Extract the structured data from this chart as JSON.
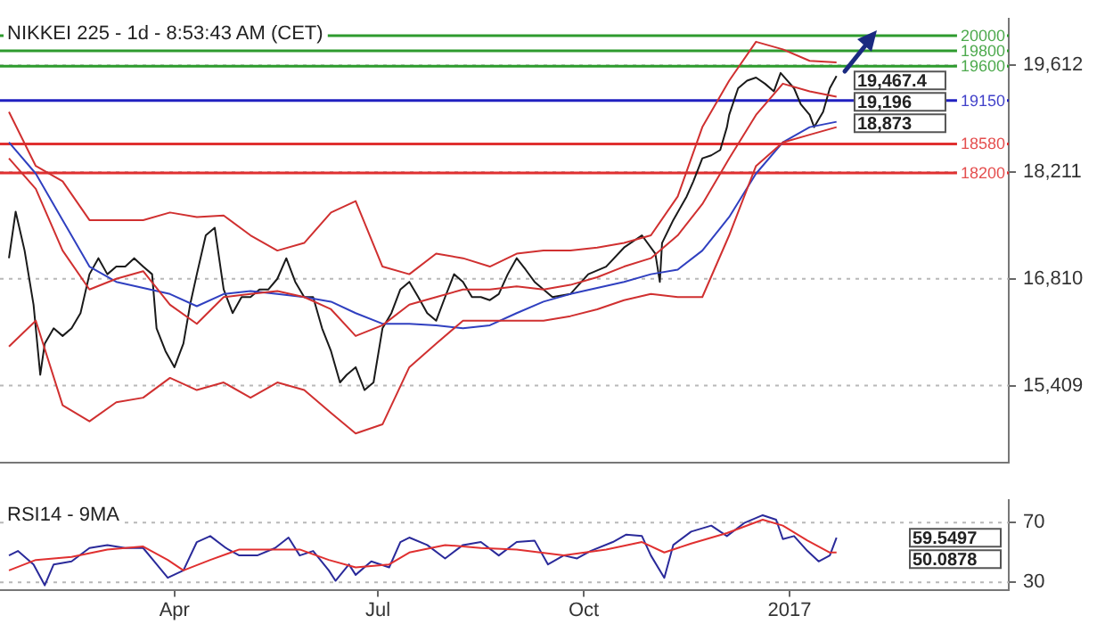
{
  "chart_data": [
    {
      "type": "line",
      "title": "NIKKEI 225 - 1d - 8:53:43 AM (CET)",
      "marker": "none",
      "grid": "y",
      "tick_labels": "y",
      "xlim": [
        "2016-01-14",
        "2017-04-09"
      ],
      "xticks": [
        {
          "value": "2016-04-01",
          "label": null
        },
        {
          "value": "2016-07-01",
          "label": null
        },
        {
          "value": "2016-10-01",
          "label": null
        },
        {
          "value": "2017-01-01",
          "label": null
        }
      ],
      "ylim": [
        14400,
        20220
      ],
      "yticks": [
        {
          "value": 15409,
          "label": "15,409"
        },
        {
          "value": 16810,
          "label": "16,810"
        },
        {
          "value": 18211,
          "label": "18,211"
        },
        {
          "value": 19612,
          "label": "19,612"
        }
      ],
      "ref_lines": [
        {
          "axis": "y",
          "value": 20000,
          "label": "20000",
          "color": "#2e9b2e"
        },
        {
          "axis": "y",
          "value": 19800,
          "label": "19800",
          "color": "#2e9b2e"
        },
        {
          "axis": "y",
          "value": 19600,
          "label": "19600",
          "color": "#2e9b2e"
        },
        {
          "axis": "y",
          "value": 19150,
          "label": "19150",
          "color": "#2020c0"
        },
        {
          "axis": "y",
          "value": 18580,
          "label": "18580",
          "color": "#e03030"
        },
        {
          "axis": "y",
          "value": 18200,
          "label": "18200",
          "color": "#e03030"
        }
      ],
      "series": [
        {
          "color": "#d03030",
          "x": [
            "2016-01-18",
            "2016-01-30",
            "2016-02-11",
            "2016-02-23",
            "2016-03-06",
            "2016-03-18",
            "2016-03-30",
            "2016-04-11",
            "2016-04-23",
            "2016-05-05",
            "2016-05-17",
            "2016-05-29",
            "2016-06-10",
            "2016-06-21",
            "2016-07-03",
            "2016-07-15",
            "2016-07-27",
            "2016-08-08",
            "2016-08-20",
            "2016-09-01",
            "2016-09-13",
            "2016-09-25",
            "2016-10-07",
            "2016-10-19",
            "2016-10-31",
            "2016-11-12",
            "2016-11-23",
            "2016-12-05",
            "2016-12-17",
            "2016-12-29",
            "2017-01-10",
            "2017-01-22"
          ],
          "values": [
            19000,
            18290,
            18090,
            17580,
            17580,
            17580,
            17680,
            17620,
            17640,
            17380,
            17180,
            17280,
            17680,
            17830,
            16970,
            16870,
            17140,
            17080,
            16970,
            17140,
            17180,
            17180,
            17220,
            17280,
            17380,
            17890,
            18800,
            19410,
            19920,
            19820,
            19670,
            19650
          ]
        },
        {
          "color": "#d03030",
          "x": [
            "2016-01-18",
            "2016-01-30",
            "2016-02-11",
            "2016-02-23",
            "2016-03-06",
            "2016-03-18",
            "2016-03-30",
            "2016-04-11",
            "2016-04-23",
            "2016-05-05",
            "2016-05-17",
            "2016-05-29",
            "2016-06-10",
            "2016-06-21",
            "2016-07-03",
            "2016-07-15",
            "2016-07-27",
            "2016-08-08",
            "2016-08-20",
            "2016-09-01",
            "2016-09-13",
            "2016-09-25",
            "2016-10-07",
            "2016-10-19",
            "2016-10-31",
            "2016-11-12",
            "2016-11-23",
            "2016-12-05",
            "2016-12-17",
            "2016-12-29",
            "2017-01-10",
            "2017-01-22"
          ],
          "values": [
            18390,
            17990,
            17180,
            16670,
            16810,
            16910,
            16470,
            16220,
            16570,
            16610,
            16650,
            16570,
            16410,
            16060,
            16200,
            16470,
            16570,
            16670,
            16670,
            16710,
            16670,
            16730,
            16830,
            16970,
            17080,
            17380,
            17790,
            18390,
            18960,
            19370,
            19270,
            19200
          ]
        },
        {
          "color": "#d03030",
          "x": [
            "2016-01-18",
            "2016-01-30",
            "2016-02-11",
            "2016-02-23",
            "2016-03-06",
            "2016-03-18",
            "2016-03-30",
            "2016-04-11",
            "2016-04-23",
            "2016-05-05",
            "2016-05-17",
            "2016-05-29",
            "2016-06-10",
            "2016-06-21",
            "2016-07-03",
            "2016-07-15",
            "2016-07-27",
            "2016-08-08",
            "2016-08-20",
            "2016-09-01",
            "2016-09-13",
            "2016-09-25",
            "2016-10-07",
            "2016-10-19",
            "2016-10-31",
            "2016-11-12",
            "2016-11-23",
            "2016-12-05",
            "2016-12-17",
            "2016-12-29",
            "2017-01-10",
            "2017-01-22"
          ],
          "values": [
            15920,
            16260,
            15150,
            14940,
            15190,
            15250,
            15510,
            15350,
            15450,
            15250,
            15450,
            15350,
            15050,
            14780,
            14900,
            15650,
            15960,
            16260,
            16260,
            16260,
            16260,
            16320,
            16410,
            16530,
            16610,
            16570,
            16570,
            17380,
            18290,
            18600,
            18700,
            18800
          ]
        },
        {
          "color": "#3040c0",
          "x": [
            "2016-01-18",
            "2016-01-30",
            "2016-02-11",
            "2016-02-23",
            "2016-03-06",
            "2016-03-18",
            "2016-03-30",
            "2016-04-11",
            "2016-04-23",
            "2016-05-05",
            "2016-05-17",
            "2016-05-29",
            "2016-06-10",
            "2016-06-21",
            "2016-07-03",
            "2016-07-15",
            "2016-07-27",
            "2016-08-08",
            "2016-08-20",
            "2016-09-01",
            "2016-09-13",
            "2016-09-25",
            "2016-10-07",
            "2016-10-19",
            "2016-10-31",
            "2016-11-12",
            "2016-11-23",
            "2016-12-05",
            "2016-12-17",
            "2016-12-29",
            "2017-01-10",
            "2017-01-22"
          ],
          "values": [
            18600,
            18190,
            17580,
            16970,
            16770,
            16690,
            16610,
            16450,
            16610,
            16650,
            16610,
            16570,
            16510,
            16360,
            16220,
            16220,
            16200,
            16160,
            16200,
            16360,
            16510,
            16610,
            16690,
            16770,
            16870,
            16930,
            17180,
            17620,
            18190,
            18600,
            18800,
            18870
          ]
        },
        {
          "color": "#1a1a1a",
          "x": [
            "2016-01-18",
            "2016-01-21",
            "2016-01-25",
            "2016-01-29",
            "2016-02-01",
            "2016-02-03",
            "2016-02-07",
            "2016-02-11",
            "2016-02-15",
            "2016-02-19",
            "2016-02-23",
            "2016-02-27",
            "2016-03-02",
            "2016-03-06",
            "2016-03-10",
            "2016-03-14",
            "2016-03-18",
            "2016-03-22",
            "2016-03-24",
            "2016-03-28",
            "2016-04-01",
            "2016-04-05",
            "2016-04-08",
            "2016-04-11",
            "2016-04-15",
            "2016-04-19",
            "2016-04-23",
            "2016-04-27",
            "2016-05-01",
            "2016-05-05",
            "2016-05-09",
            "2016-05-13",
            "2016-05-17",
            "2016-05-21",
            "2016-05-25",
            "2016-05-29",
            "2016-06-02",
            "2016-06-06",
            "2016-06-10",
            "2016-06-14",
            "2016-06-17",
            "2016-06-21",
            "2016-06-25",
            "2016-06-29",
            "2016-07-03",
            "2016-07-07",
            "2016-07-11",
            "2016-07-15",
            "2016-07-19",
            "2016-07-23",
            "2016-07-27",
            "2016-07-31",
            "2016-08-04",
            "2016-08-08",
            "2016-08-12",
            "2016-08-16",
            "2016-08-20",
            "2016-08-24",
            "2016-08-28",
            "2016-09-01",
            "2016-09-05",
            "2016-09-09",
            "2016-09-17",
            "2016-09-25",
            "2016-10-03",
            "2016-10-11",
            "2016-10-19",
            "2016-10-27",
            "2016-11-02",
            "2016-11-04",
            "2016-11-05",
            "2016-11-10",
            "2016-11-16",
            "2016-11-19",
            "2016-11-23",
            "2016-11-27",
            "2016-12-01",
            "2016-12-04",
            "2016-12-05",
            "2016-12-09",
            "2016-12-13",
            "2016-12-17",
            "2016-12-21",
            "2016-12-25",
            "2016-12-28",
            "2016-12-31",
            "2017-01-03",
            "2017-01-06",
            "2017-01-10",
            "2017-01-12",
            "2017-01-16",
            "2017-01-19",
            "2017-01-22"
          ],
          "values": [
            17080,
            17690,
            17180,
            16470,
            15550,
            15960,
            16160,
            16060,
            16160,
            16360,
            16870,
            17080,
            16870,
            16970,
            16970,
            17080,
            16970,
            16870,
            16160,
            15860,
            15650,
            15960,
            16470,
            16870,
            17380,
            17480,
            16670,
            16360,
            16570,
            16570,
            16670,
            16670,
            16810,
            17080,
            16770,
            16570,
            16570,
            16160,
            15860,
            15450,
            15550,
            15650,
            15350,
            15450,
            16160,
            16360,
            16670,
            16770,
            16570,
            16360,
            16260,
            16570,
            16870,
            16770,
            16570,
            16570,
            16530,
            16610,
            16870,
            17080,
            16930,
            16770,
            16570,
            16610,
            16870,
            16970,
            17220,
            17380,
            17140,
            16770,
            17280,
            17580,
            17890,
            18090,
            18390,
            18430,
            18500,
            18800,
            18960,
            19310,
            19410,
            19450,
            19370,
            19270,
            19510,
            19410,
            19310,
            19100,
            18960,
            18800,
            19000,
            19310,
            19470
          ]
        }
      ],
      "annotations": [
        "19,467.4",
        "19,196",
        "18,873"
      ]
    },
    {
      "type": "line",
      "title": "RSI14 - 9MA",
      "marker": "none",
      "grid": "y",
      "xlim": [
        "2016-01-14",
        "2017-04-09"
      ],
      "xticks": [
        {
          "value": "2016-04-01",
          "label": "Apr"
        },
        {
          "value": "2016-07-01",
          "label": "Jul"
        },
        {
          "value": "2016-10-01",
          "label": "Oct"
        },
        {
          "value": "2017-01-01",
          "label": "2017"
        }
      ],
      "ylim": [
        25,
        85
      ],
      "yticks": [
        30,
        70
      ],
      "series": [
        {
          "color": "#e03030",
          "x": [
            "2016-01-18",
            "2016-01-30",
            "2016-02-15",
            "2016-03-02",
            "2016-03-18",
            "2016-03-29",
            "2016-04-05",
            "2016-04-17",
            "2016-04-30",
            "2016-05-16",
            "2016-05-27",
            "2016-06-09",
            "2016-06-21",
            "2016-07-06",
            "2016-07-15",
            "2016-07-31",
            "2016-08-16",
            "2016-09-01",
            "2016-09-22",
            "2016-10-11",
            "2016-10-27",
            "2016-11-06",
            "2016-11-18",
            "2016-12-04",
            "2016-12-20",
            "2016-12-29",
            "2017-01-09",
            "2017-01-19",
            "2017-01-22"
          ],
          "values": [
            38,
            45,
            47,
            52,
            54,
            45,
            38,
            45,
            52,
            52,
            52,
            45,
            40,
            42,
            50,
            55,
            53,
            52,
            48,
            52,
            57,
            50,
            56,
            63,
            72,
            68,
            58,
            50,
            50
          ]
        },
        {
          "color": "#2a2a9a",
          "x": [
            "2016-01-18",
            "2016-01-22",
            "2016-01-29",
            "2016-02-03",
            "2016-02-07",
            "2016-02-15",
            "2016-02-23",
            "2016-03-02",
            "2016-03-10",
            "2016-03-18",
            "2016-03-23",
            "2016-03-29",
            "2016-04-05",
            "2016-04-11",
            "2016-04-17",
            "2016-04-24",
            "2016-04-30",
            "2016-05-08",
            "2016-05-16",
            "2016-05-22",
            "2016-05-27",
            "2016-06-02",
            "2016-06-09",
            "2016-06-12",
            "2016-06-18",
            "2016-06-21",
            "2016-06-28",
            "2016-07-06",
            "2016-07-11",
            "2016-07-15",
            "2016-07-23",
            "2016-07-31",
            "2016-08-08",
            "2016-08-16",
            "2016-08-24",
            "2016-09-01",
            "2016-09-09",
            "2016-09-15",
            "2016-09-22",
            "2016-09-28",
            "2016-10-04",
            "2016-10-14",
            "2016-10-20",
            "2016-10-27",
            "2016-10-31",
            "2016-11-06",
            "2016-11-10",
            "2016-11-18",
            "2016-11-27",
            "2016-12-04",
            "2016-12-12",
            "2016-12-20",
            "2016-12-26",
            "2016-12-29",
            "2017-01-03",
            "2017-01-09",
            "2017-01-14",
            "2017-01-19",
            "2017-01-22"
          ],
          "values": [
            48,
            51,
            42,
            28,
            42,
            44,
            53,
            55,
            53,
            53,
            44,
            33,
            38,
            57,
            61,
            53,
            48,
            48,
            53,
            60,
            48,
            51,
            38,
            31,
            42,
            35,
            44,
            40,
            57,
            60,
            55,
            46,
            55,
            57,
            48,
            57,
            58,
            42,
            48,
            46,
            51,
            57,
            62,
            61,
            48,
            33,
            55,
            64,
            68,
            61,
            70,
            75,
            72,
            59,
            61,
            51,
            44,
            48,
            60
          ]
        }
      ],
      "annotations": [
        "59.5497",
        "50.0878"
      ]
    }
  ]
}
